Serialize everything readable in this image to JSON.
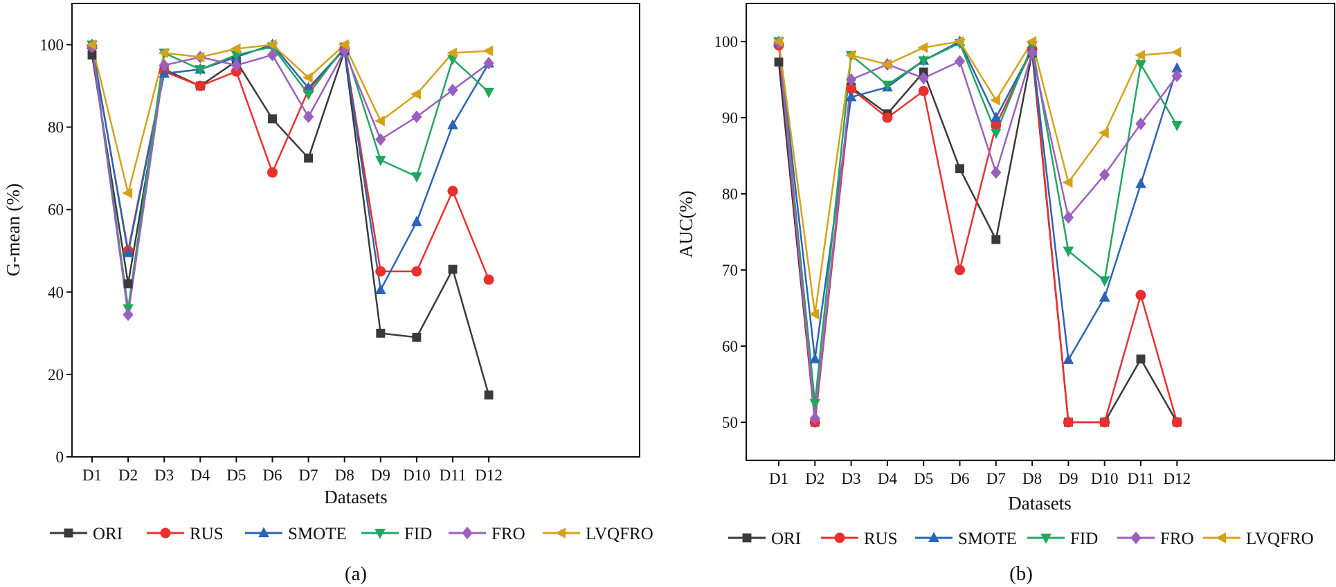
{
  "figure": {
    "series_styles": [
      {
        "name": "ORI",
        "color": "#3a3a3a",
        "marker": "square"
      },
      {
        "name": "RUS",
        "color": "#e8312e",
        "marker": "circle"
      },
      {
        "name": "SMOTE",
        "color": "#2b63b6",
        "marker": "triangle-up"
      },
      {
        "name": "FID",
        "color": "#1fa761",
        "marker": "triangle-down"
      },
      {
        "name": "FRO",
        "color": "#9a5fbf",
        "marker": "diamond"
      },
      {
        "name": "LVQFRO",
        "color": "#d4a21a",
        "marker": "triangle-left"
      }
    ]
  },
  "chart_data": [
    {
      "type": "line",
      "panel_label": "(a)",
      "xlabel": "Datasets",
      "ylabel": "G-mean (%)",
      "ylim": [
        0,
        110
      ],
      "yticks": [
        0,
        20,
        40,
        60,
        80,
        100
      ],
      "categories": [
        "D1",
        "D2",
        "D3",
        "D4",
        "D5",
        "D6",
        "D7",
        "D8",
        "D9",
        "D10",
        "D11",
        "D12"
      ],
      "legend_position": "bottom",
      "series": [
        {
          "name": "ORI",
          "values": [
            97.5,
            42,
            94,
            90,
            96,
            82,
            72.5,
            98.5,
            30,
            29,
            45.5,
            15
          ]
        },
        {
          "name": "RUS",
          "values": [
            99.5,
            50,
            93.5,
            90,
            93.5,
            69,
            89,
            99,
            45,
            45,
            64.5,
            43
          ]
        },
        {
          "name": "SMOTE",
          "values": [
            100,
            49.5,
            93,
            94,
            97,
            100,
            89.5,
            99,
            40.5,
            57,
            80.5,
            95.5
          ]
        },
        {
          "name": "FID",
          "values": [
            100,
            36,
            98,
            94,
            97.5,
            99.5,
            88,
            99.5,
            72,
            68,
            96.5,
            88.5
          ]
        },
        {
          "name": "FRO",
          "values": [
            99.5,
            34.5,
            95,
            97,
            95,
            97.5,
            82.5,
            98.5,
            77,
            82.5,
            89,
            95.5
          ]
        },
        {
          "name": "LVQFRO",
          "values": [
            100,
            64,
            98,
            97,
            99,
            100,
            92,
            100,
            81.5,
            88,
            98,
            98.5
          ]
        }
      ]
    },
    {
      "type": "line",
      "panel_label": "(b)",
      "xlabel": "Datasets",
      "ylabel": "AUC(%)",
      "ylim": [
        45,
        105
      ],
      "yticks": [
        50,
        60,
        70,
        80,
        90,
        100
      ],
      "categories": [
        "D1",
        "D2",
        "D3",
        "D4",
        "D5",
        "D6",
        "D7",
        "D8",
        "D9",
        "D10",
        "D11",
        "D12"
      ],
      "legend_position": "bottom",
      "series": [
        {
          "name": "ORI",
          "values": [
            97.3,
            50,
            94,
            90.5,
            96,
            83.3,
            74,
            98.5,
            50,
            50,
            58.3,
            50
          ]
        },
        {
          "name": "RUS",
          "values": [
            99.5,
            50,
            93.8,
            90,
            93.5,
            70,
            89,
            99,
            50,
            50,
            66.7,
            50
          ]
        },
        {
          "name": "SMOTE",
          "values": [
            100,
            58.3,
            92.7,
            94,
            97.5,
            100,
            90,
            99,
            58.2,
            66.4,
            81.3,
            96.5
          ]
        },
        {
          "name": "FID",
          "values": [
            100,
            52.5,
            98.2,
            94.3,
            97.5,
            99.8,
            88,
            99.5,
            72.5,
            68.6,
            97,
            89
          ]
        },
        {
          "name": "FRO",
          "values": [
            99.8,
            50.5,
            95,
            97,
            95.2,
            97.4,
            82.8,
            98.5,
            76.9,
            82.5,
            89.2,
            95.5
          ]
        },
        {
          "name": "LVQFRO",
          "values": [
            100,
            64.2,
            98.2,
            97,
            99.2,
            100,
            92.3,
            100,
            81.5,
            88,
            98.2,
            98.6
          ]
        }
      ]
    }
  ]
}
